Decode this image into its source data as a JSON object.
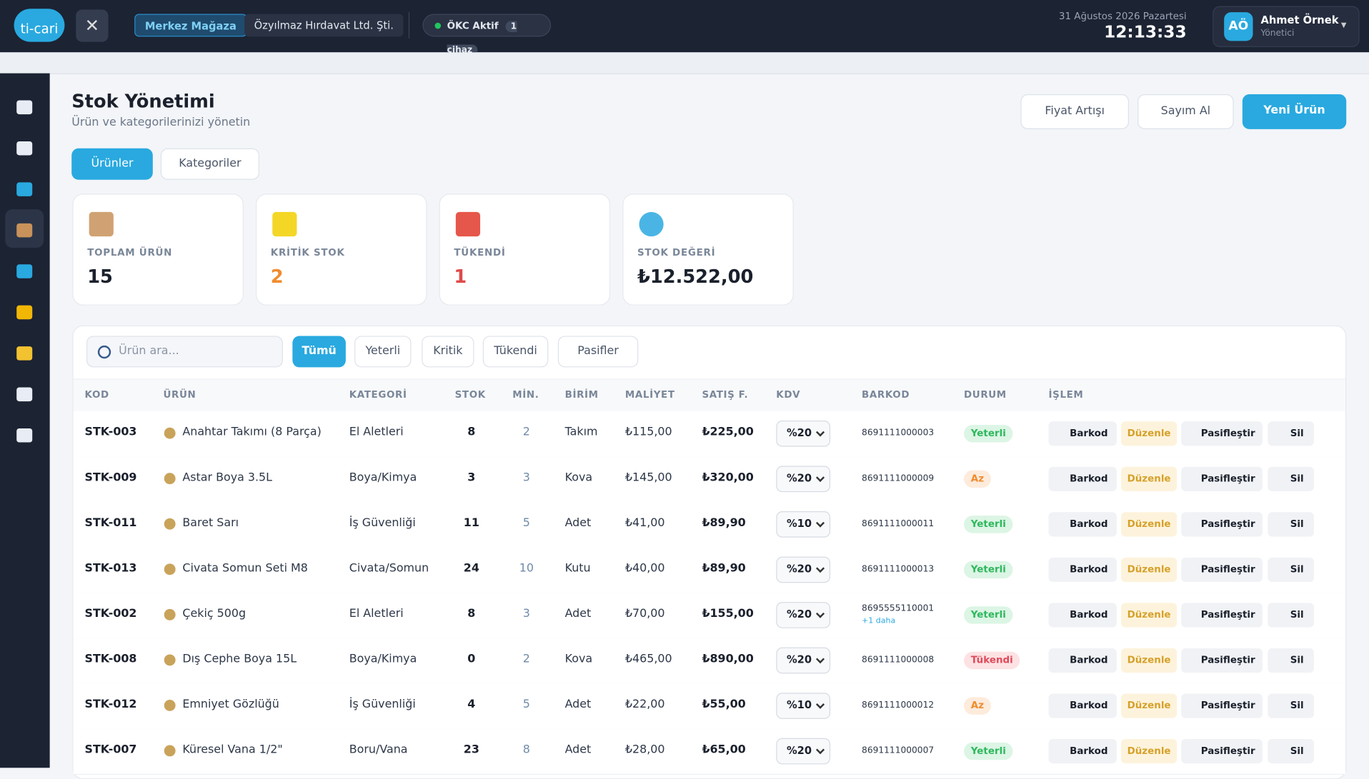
{
  "header": {
    "logo": "ti-cari",
    "store": "Merkez Mağaza",
    "company": "Özyılmaz Hırdavat Ltd. Şti.",
    "okc": "ÖKC Aktif",
    "devices": "1 cihaz",
    "date": "31 Ağustos 2026 Pazartesi",
    "time": "12:13:33",
    "user": {
      "initials": "AÖ",
      "name": "Ahmet Örnek",
      "role": "Yönetici"
    }
  },
  "page": {
    "title": "Stok Yönetimi",
    "subtitle": "Ürün ve kategorilerinizi yönetin",
    "actions": [
      "Fiyat Artışı",
      "Sayım Al",
      "Yeni Ürün"
    ],
    "tabs": [
      "Ürünler",
      "Kategoriler"
    ]
  },
  "stats": [
    {
      "label": "TOPLAM ÜRÜN",
      "value": "15"
    },
    {
      "label": "KRİTİK STOK",
      "value": "2"
    },
    {
      "label": "TÜKENDİ",
      "value": "1"
    },
    {
      "label": "STOK DEĞERİ",
      "value": "₺12.522,00"
    }
  ],
  "filters": {
    "search": "Ürün ara...",
    "buttons": [
      "Tümü",
      "Yeterli",
      "Kritik",
      "Tükendi",
      "Pasifler"
    ]
  },
  "table": {
    "columns": [
      "KOD",
      "ÜRÜN",
      "KATEGORİ",
      "STOK",
      "MİN.",
      "BİRİM",
      "MALİYET",
      "SATIŞ F.",
      "KDV",
      "BARKOD",
      "DURUM",
      "İŞLEM"
    ],
    "row_actions": [
      "Barkod",
      "Düzenle",
      "Pasifleştir",
      "Sil"
    ],
    "rows": [
      {
        "code": "STK-003",
        "product": "Anahtar Takımı (8 Parça)",
        "category": "El Aletleri",
        "stock": 8,
        "min": 2,
        "unit": "Takım",
        "cost": "₺115,00",
        "price": "₺225,00",
        "vat": "%20",
        "barcode": "8691111000003",
        "status": "Yeterli"
      },
      {
        "code": "STK-009",
        "product": "Astar Boya 3.5L",
        "category": "Boya/Kimya",
        "stock": 3,
        "min": 3,
        "unit": "Kova",
        "cost": "₺145,00",
        "price": "₺320,00",
        "vat": "%20",
        "barcode": "8691111000009",
        "status": "Az"
      },
      {
        "code": "STK-011",
        "product": "Baret Sarı",
        "category": "İş Güvenliği",
        "stock": 11,
        "min": 5,
        "unit": "Adet",
        "cost": "₺41,00",
        "price": "₺89,90",
        "vat": "%10",
        "barcode": "8691111000011",
        "status": "Yeterli"
      },
      {
        "code": "STK-013",
        "product": "Civata Somun Seti M8",
        "category": "Civata/Somun",
        "stock": 24,
        "min": 10,
        "unit": "Kutu",
        "cost": "₺40,00",
        "price": "₺89,90",
        "vat": "%20",
        "barcode": "8691111000013",
        "status": "Yeterli"
      },
      {
        "code": "STK-002",
        "product": "Çekiç 500g",
        "category": "El Aletleri",
        "stock": 8,
        "min": 3,
        "unit": "Adet",
        "cost": "₺70,00",
        "price": "₺155,00",
        "vat": "%20",
        "barcode": "8695555110001",
        "barcode_extra": "+1 daha",
        "status": "Yeterli"
      },
      {
        "code": "STK-008",
        "product": "Dış Cephe Boya 15L",
        "category": "Boya/Kimya",
        "stock": 0,
        "min": 2,
        "unit": "Kova",
        "cost": "₺465,00",
        "price": "₺890,00",
        "vat": "%20",
        "barcode": "8691111000008",
        "status": "Tükendi"
      },
      {
        "code": "STK-012",
        "product": "Emniyet Gözlüğü",
        "category": "İş Güvenliği",
        "stock": 4,
        "min": 5,
        "unit": "Adet",
        "cost": "₺22,00",
        "price": "₺55,00",
        "vat": "%10",
        "barcode": "8691111000012",
        "status": "Az"
      },
      {
        "code": "STK-007",
        "product": "Küresel Vana 1/2\"",
        "category": "Boru/Vana",
        "stock": 23,
        "min": 8,
        "unit": "Adet",
        "cost": "₺28,00",
        "price": "₺65,00",
        "vat": "%20",
        "barcode": "8691111000007",
        "status": "Yeterli"
      }
    ]
  }
}
